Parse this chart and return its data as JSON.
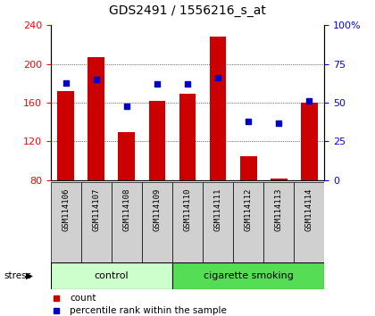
{
  "title": "GDS2491 / 1556216_s_at",
  "samples": [
    "GSM114106",
    "GSM114107",
    "GSM114108",
    "GSM114109",
    "GSM114110",
    "GSM114111",
    "GSM114112",
    "GSM114113",
    "GSM114114"
  ],
  "counts": [
    172,
    207,
    130,
    162,
    169,
    228,
    105,
    82,
    160
  ],
  "percentile_ranks": [
    63,
    65,
    48,
    62,
    62,
    66,
    38,
    37,
    51
  ],
  "ymin": 80,
  "ymax": 240,
  "yticks": [
    80,
    120,
    160,
    200,
    240
  ],
  "y2min": 0,
  "y2max": 100,
  "y2ticks": [
    0,
    25,
    50,
    75,
    100
  ],
  "bar_color": "#cc0000",
  "dot_color": "#0000cc",
  "bar_width": 0.55,
  "control_indices": [
    0,
    1,
    2,
    3
  ],
  "smoking_indices": [
    4,
    5,
    6,
    7,
    8
  ],
  "control_label": "control",
  "smoking_label": "cigarette smoking",
  "stress_label": "stress",
  "control_color": "#ccffcc",
  "smoking_color": "#55dd55",
  "group_bg_color": "#d0d0d0",
  "legend_count_label": "count",
  "legend_pct_label": "percentile rank within the sample",
  "title_fontsize": 10,
  "tick_fontsize": 8,
  "sample_fontsize": 6.5
}
